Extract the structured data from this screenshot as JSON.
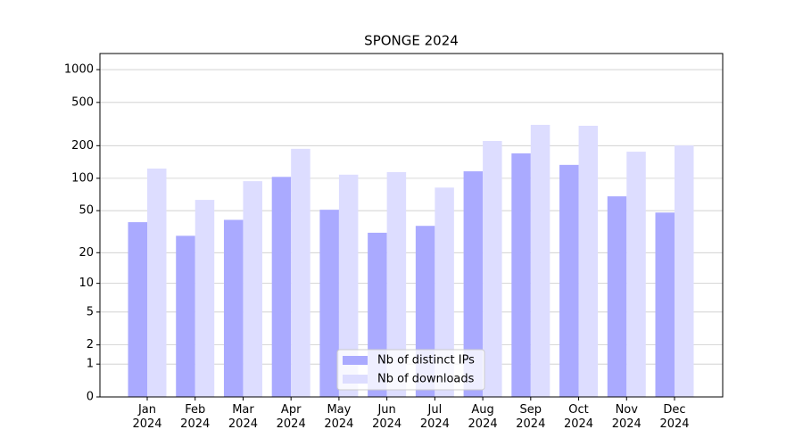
{
  "chart_data": {
    "type": "bar",
    "title": "SPONGE 2024",
    "scale": "log1p",
    "categories": [
      "Jan\n2024",
      "Feb\n2024",
      "Mar\n2024",
      "Apr\n2024",
      "May\n2024",
      "Jun\n2024",
      "Jul\n2024",
      "Aug\n2024",
      "Sep\n2024",
      "Oct\n2024",
      "Nov\n2024",
      "Dec\n2024"
    ],
    "series": [
      {
        "name": "Nb of distinct IPs",
        "color": "#aaaaff",
        "values": [
          39,
          29,
          41,
          103,
          51,
          31,
          36,
          116,
          170,
          133,
          68,
          48
        ]
      },
      {
        "name": "Nb of downloads",
        "color": "#ddddff",
        "values": [
          123,
          63,
          94,
          187,
          108,
          114,
          82,
          221,
          311,
          305,
          176,
          201
        ]
      }
    ],
    "ylim": [
      0,
      1405
    ],
    "yticks": [
      0,
      1,
      2,
      5,
      10,
      20,
      50,
      100,
      200,
      500,
      1000
    ],
    "grid": true,
    "legend": "lower center"
  }
}
